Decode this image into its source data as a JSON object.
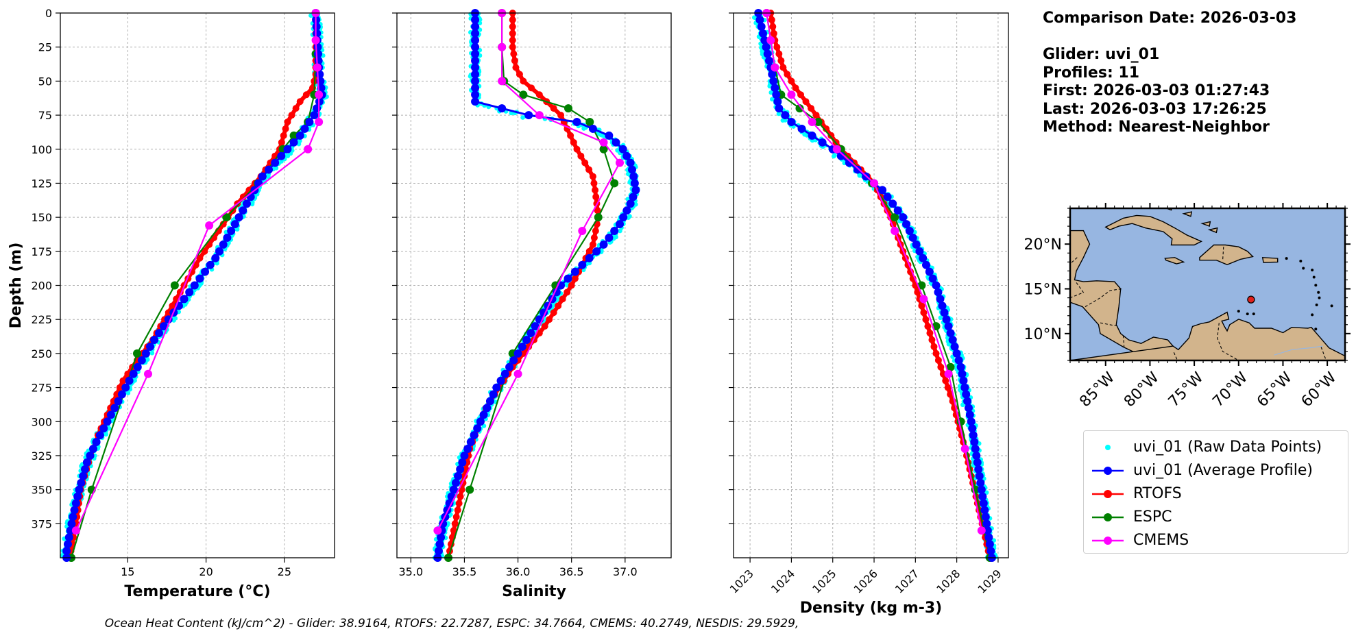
{
  "chart_data": [
    {
      "type": "line",
      "xlabel": "Temperature (°C)",
      "ylabel": "Depth (m)",
      "xticks": [
        15,
        20,
        25
      ],
      "xlim": [
        10.7,
        28.2
      ],
      "ylim": [
        400,
        0
      ],
      "yticks": [
        0,
        25,
        50,
        75,
        100,
        125,
        150,
        175,
        200,
        225,
        250,
        275,
        300,
        325,
        350,
        375
      ],
      "grid": true,
      "series": [
        {
          "name": "uvi_01 (Average Profile)",
          "x": [
            27.0,
            27.05,
            27.1,
            27.15,
            27.2,
            27.3,
            27.4,
            26.9,
            26.0,
            24.8,
            23.6,
            22.6,
            21.6,
            20.6,
            19.6,
            18.6,
            17.6,
            16.7,
            15.9,
            15.1,
            14.4,
            13.7,
            13.0,
            12.4,
            11.9,
            11.5,
            11.1
          ],
          "y": [
            0,
            10,
            20,
            30,
            40,
            50,
            60,
            75,
            90,
            105,
            120,
            140,
            160,
            180,
            195,
            210,
            225,
            240,
            255,
            270,
            285,
            300,
            315,
            330,
            350,
            370,
            395
          ]
        },
        {
          "name": "RTOFS",
          "x": [
            27.0,
            27.0,
            27.0,
            26.8,
            26.0,
            25.2,
            24.7,
            23.5,
            22.0,
            20.8,
            19.6,
            18.6,
            17.6,
            16.6,
            15.6,
            14.7,
            13.9,
            13.1,
            12.5,
            12.0,
            11.7,
            11.3
          ],
          "y": [
            0,
            20,
            45,
            55,
            65,
            80,
            100,
            120,
            140,
            160,
            180,
            200,
            220,
            240,
            255,
            270,
            290,
            310,
            330,
            350,
            375,
            400
          ]
        },
        {
          "name": "ESPC",
          "x": [
            27.0,
            27.0,
            26.9,
            26.5,
            25.6,
            24.9,
            23.3,
            21.3,
            18.0,
            15.6,
            12.7,
            11.4
          ],
          "y": [
            0,
            30,
            60,
            80,
            90,
            100,
            125,
            150,
            200,
            250,
            350,
            400
          ]
        },
        {
          "name": "CMEMS",
          "x": [
            27.0,
            27.0,
            27.1,
            27.2,
            27.2,
            26.5,
            20.2,
            16.3,
            11.7
          ],
          "y": [
            0,
            20,
            40,
            60,
            80,
            100,
            156,
            265,
            380
          ]
        }
      ]
    },
    {
      "type": "line",
      "xlabel": "Salinity",
      "ylabel": "",
      "xticks": [
        35.0,
        35.5,
        36.0,
        36.5,
        37.0
      ],
      "xlim": [
        34.87,
        37.43
      ],
      "ylim": [
        400,
        0
      ],
      "grid": true,
      "series": [
        {
          "name": "uvi_01 (Average Profile)",
          "x": [
            35.6,
            35.6,
            35.6,
            35.6,
            35.6,
            35.6,
            36.1,
            36.55,
            36.85,
            36.98,
            37.05,
            37.08,
            37.1,
            37.05,
            36.95,
            36.8,
            36.6,
            36.4,
            36.2,
            36.0,
            35.8,
            35.65,
            35.5,
            35.4,
            35.3,
            35.25
          ],
          "y": [
            0,
            10,
            20,
            30,
            40,
            65,
            75,
            80,
            90,
            100,
            110,
            120,
            130,
            140,
            155,
            170,
            185,
            200,
            225,
            250,
            275,
            300,
            325,
            350,
            375,
            400
          ]
        },
        {
          "name": "RTOFS",
          "x": [
            35.95,
            35.95,
            35.98,
            36.05,
            36.2,
            36.4,
            36.55,
            36.7,
            36.72,
            36.75,
            36.7,
            36.5,
            36.25,
            35.95,
            35.7,
            35.55,
            35.45,
            35.35
          ],
          "y": [
            0,
            25,
            40,
            50,
            60,
            75,
            100,
            120,
            130,
            150,
            170,
            200,
            230,
            260,
            290,
            320,
            360,
            400
          ]
        },
        {
          "name": "ESPC",
          "x": [
            35.85,
            35.85,
            35.87,
            36.05,
            36.47,
            36.67,
            36.8,
            36.9,
            36.75,
            36.35,
            35.95,
            35.55,
            35.35
          ],
          "y": [
            0,
            25,
            50,
            60,
            70,
            80,
            100,
            125,
            150,
            200,
            250,
            350,
            400
          ]
        },
        {
          "name": "CMEMS",
          "x": [
            35.85,
            35.85,
            35.85,
            36.2,
            36.8,
            36.95,
            36.6,
            36.0,
            35.25
          ],
          "y": [
            0,
            25,
            50,
            75,
            95,
            110,
            160,
            265,
            380
          ]
        }
      ]
    },
    {
      "type": "line",
      "xlabel": "Density (kg m-3)",
      "ylabel": "",
      "xticks": [
        1023,
        1024,
        1025,
        1026,
        1027,
        1028,
        1029
      ],
      "xlim": [
        1022.6,
        1029.25
      ],
      "ylim": [
        400,
        0
      ],
      "grid": true,
      "series": [
        {
          "name": "uvi_01 (Average Profile)",
          "x": [
            1023.2,
            1023.35,
            1023.5,
            1023.6,
            1023.7,
            1024.0,
            1024.5,
            1025.0,
            1025.6,
            1026.2,
            1026.7,
            1027.1,
            1027.5,
            1027.8,
            1028.1,
            1028.35,
            1028.6,
            1028.85
          ],
          "y": [
            0,
            20,
            40,
            55,
            70,
            80,
            90,
            100,
            115,
            130,
            150,
            175,
            200,
            230,
            260,
            300,
            350,
            400
          ]
        },
        {
          "name": "RTOFS",
          "x": [
            1023.5,
            1023.6,
            1023.8,
            1024.1,
            1024.6,
            1025.2,
            1026.0,
            1026.4,
            1027.0,
            1027.5,
            1027.9,
            1028.2,
            1028.5,
            1028.8
          ],
          "y": [
            0,
            20,
            40,
            55,
            75,
            100,
            125,
            150,
            200,
            250,
            285,
            320,
            360,
            400
          ]
        },
        {
          "name": "ESPC",
          "x": [
            1023.4,
            1023.5,
            1023.6,
            1023.75,
            1024.2,
            1024.65,
            1025.2,
            1025.95,
            1026.5,
            1027.15,
            1027.5,
            1027.85,
            1028.1,
            1028.45,
            1028.8
          ],
          "y": [
            0,
            20,
            40,
            60,
            70,
            80,
            100,
            125,
            150,
            200,
            230,
            260,
            300,
            350,
            400
          ]
        },
        {
          "name": "CMEMS",
          "x": [
            1023.4,
            1023.5,
            1023.6,
            1024.0,
            1024.5,
            1025.1,
            1026.0,
            1026.5,
            1027.2,
            1027.8,
            1028.2,
            1028.6
          ],
          "y": [
            0,
            20,
            40,
            60,
            80,
            100,
            125,
            160,
            210,
            265,
            320,
            380
          ]
        }
      ]
    }
  ],
  "info": {
    "comparison_date": "Comparison Date: 2026-03-03",
    "glider": "Glider: uvi_01",
    "profiles": "Profiles: 11",
    "first": "First: 2026-03-03 01:27:43",
    "last": "Last: 2026-03-03 17:26:25",
    "method": "Method: Nearest-Neighbor"
  },
  "map": {
    "lat_ticks": [
      "20°N",
      "15°N",
      "10°N"
    ],
    "lon_ticks": [
      "85°W",
      "80°W",
      "75°W",
      "70°W",
      "65°W",
      "60°W"
    ],
    "glider_location": {
      "lon": -68.6,
      "lat": 13.8
    },
    "ocean_color": "#97b6e1",
    "land_color": "#d2b48c",
    "marker_color": "#e0201b"
  },
  "legend": {
    "raw": "uvi_01 (Raw Data Points)",
    "avg": "uvi_01 (Average Profile)",
    "rtofs": "RTOFS",
    "espc": "ESPC",
    "cmems": "CMEMS"
  },
  "colors": {
    "raw": "#00ffff",
    "avg": "#0000ff",
    "rtofs": "#ff0000",
    "espc": "#008000",
    "cmems": "#ff00ff"
  },
  "footer": "Ocean Heat Content (kJ/cm^2) - Glider: 38.9164,  RTOFS: 22.7287,  ESPC: 34.7664,  CMEMS: 40.2749,  NESDIS: 29.5929,"
}
